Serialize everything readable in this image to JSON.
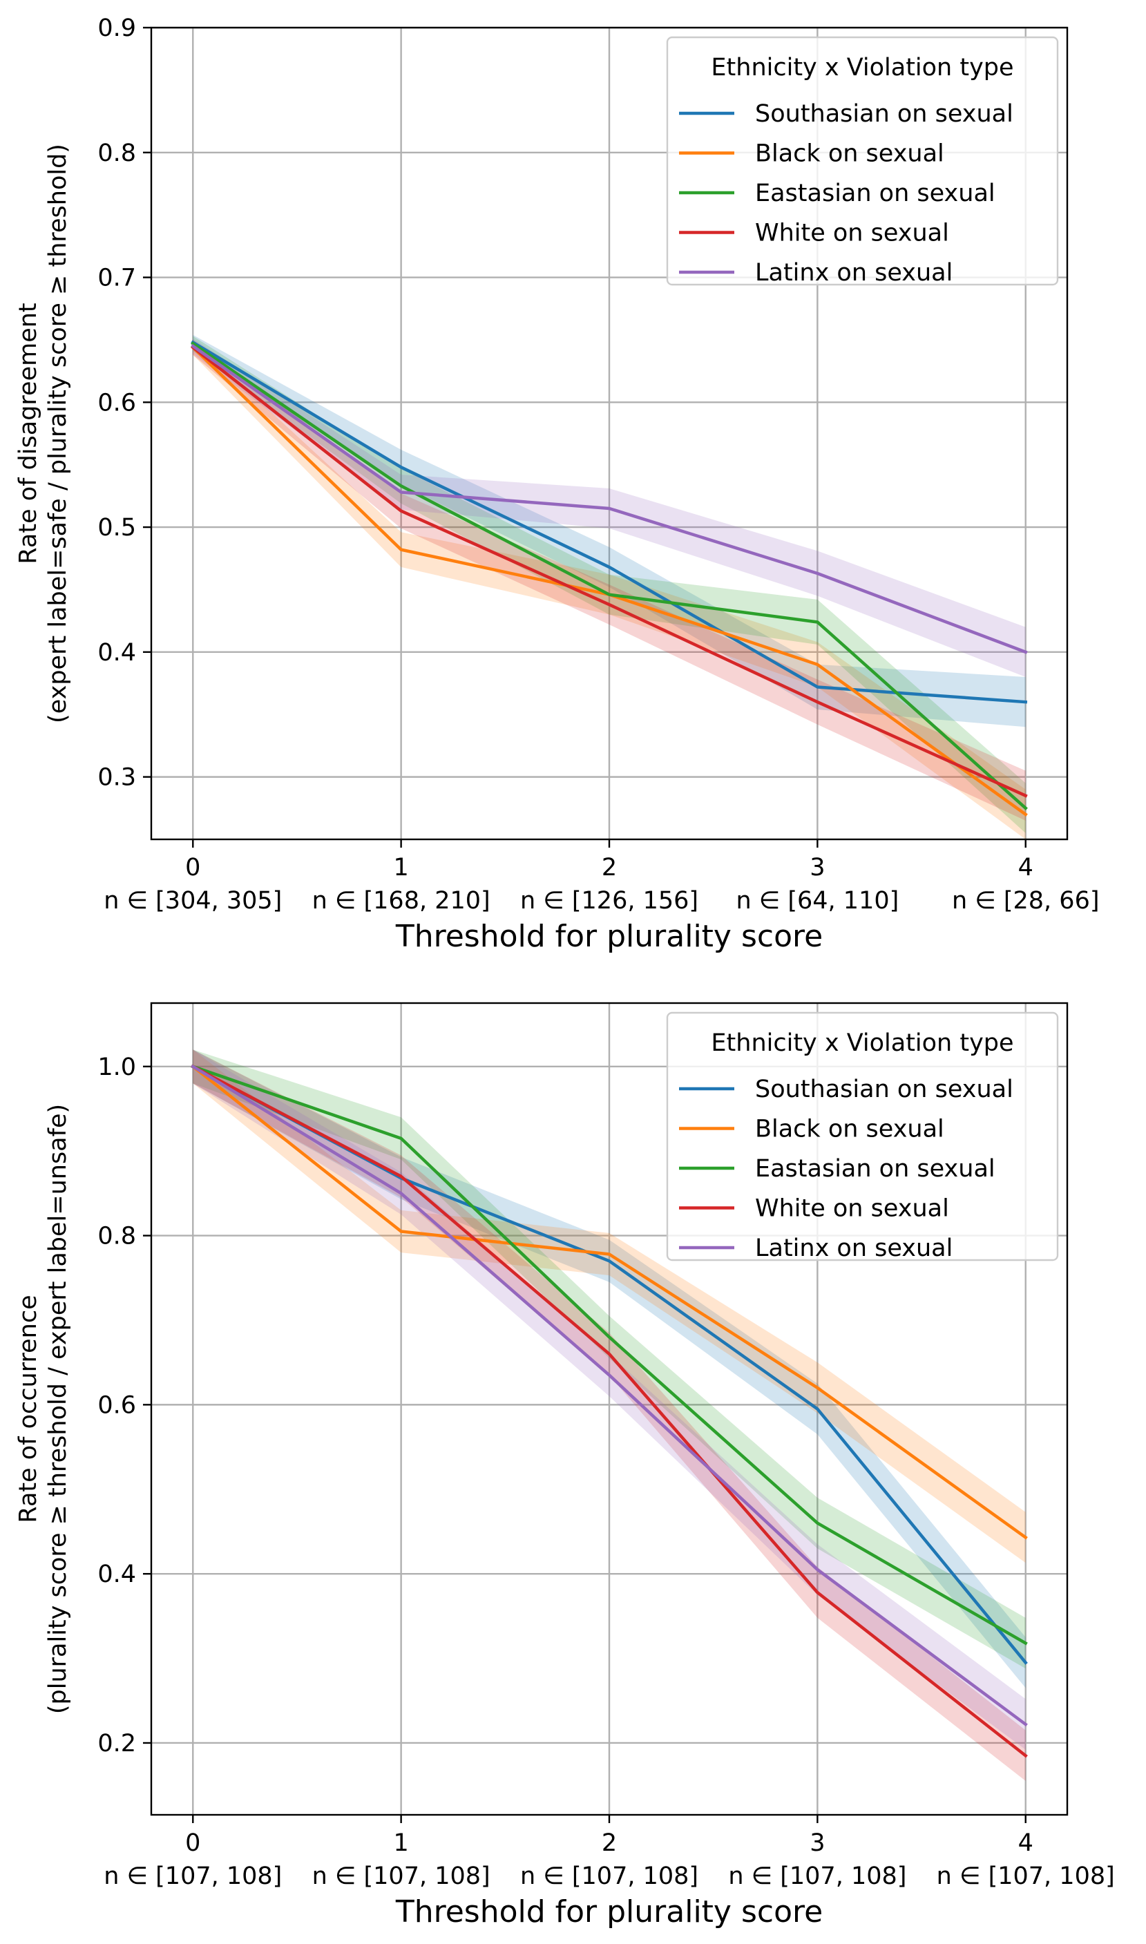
{
  "chart_data": [
    {
      "type": "line",
      "x": [
        0,
        1,
        2,
        3,
        4
      ],
      "xticks": [
        "0",
        "1",
        "2",
        "3",
        "4"
      ],
      "n_labels": [
        "n ∈ [304, 305]",
        "n ∈ [168, 210]",
        "n ∈ [126, 156]",
        "n ∈ [64, 110]",
        "n ∈ [28, 66]"
      ],
      "yticks": [
        "0.3",
        "0.4",
        "0.5",
        "0.6",
        "0.7",
        "0.8",
        "0.9"
      ],
      "ytick_values": [
        0.3,
        0.4,
        0.5,
        0.6,
        0.7,
        0.8,
        0.9
      ],
      "xlabel": "Threshold for plurality score",
      "ylabel_line1": "Rate of disagreement",
      "ylabel_line2": "(expert label=safe / plurality score ≥ threshold)",
      "xlim": [
        -0.2,
        4.2
      ],
      "ylim": [
        0.25,
        0.9
      ],
      "grid": true,
      "legend": {
        "title": "Ethnicity x Violation type",
        "placement": "top-right"
      },
      "series": [
        {
          "name": "Southasian on sexual",
          "color": "#1f77b4",
          "values": [
            0.648,
            0.548,
            0.468,
            0.372,
            0.36
          ],
          "band": [
            0.006,
            0.014,
            0.016,
            0.018,
            0.02
          ]
        },
        {
          "name": "Black on sexual",
          "color": "#ff7f0e",
          "values": [
            0.644,
            0.482,
            0.446,
            0.39,
            0.27
          ],
          "band": [
            0.006,
            0.014,
            0.016,
            0.018,
            0.02
          ]
        },
        {
          "name": "Eastasian on sexual",
          "color": "#2ca02c",
          "values": [
            0.647,
            0.533,
            0.446,
            0.424,
            0.275
          ],
          "band": [
            0.006,
            0.014,
            0.016,
            0.018,
            0.02
          ]
        },
        {
          "name": "White on sexual",
          "color": "#d62728",
          "values": [
            0.644,
            0.513,
            0.438,
            0.36,
            0.285
          ],
          "band": [
            0.006,
            0.014,
            0.016,
            0.018,
            0.02
          ]
        },
        {
          "name": "Latinx on sexual",
          "color": "#9467bd",
          "values": [
            0.645,
            0.528,
            0.515,
            0.463,
            0.4
          ],
          "band": [
            0.006,
            0.014,
            0.016,
            0.018,
            0.02
          ]
        }
      ]
    },
    {
      "type": "line",
      "x": [
        0,
        1,
        2,
        3,
        4
      ],
      "xticks": [
        "0",
        "1",
        "2",
        "3",
        "4"
      ],
      "n_labels": [
        "n ∈ [107, 108]",
        "n ∈ [107, 108]",
        "n ∈ [107, 108]",
        "n ∈ [107, 108]",
        "n ∈ [107, 108]"
      ],
      "yticks": [
        "0.2",
        "0.4",
        "0.6",
        "0.8",
        "1.0"
      ],
      "ytick_values": [
        0.2,
        0.4,
        0.6,
        0.8,
        1.0
      ],
      "xlabel": "Threshold for plurality score",
      "ylabel_line1": "Rate of occurrence",
      "ylabel_line2": "(plurality score ≥ threshold / expert label=unsafe)",
      "xlim": [
        -0.2,
        4.2
      ],
      "ylim": [
        0.115,
        1.075
      ],
      "grid": true,
      "legend": {
        "title": "Ethnicity x Violation type",
        "placement": "top-right"
      },
      "series": [
        {
          "name": "Southasian on sexual",
          "color": "#1f77b4",
          "values": [
            1.0,
            0.868,
            0.77,
            0.595,
            0.295
          ],
          "band": [
            0.02,
            0.025,
            0.025,
            0.03,
            0.03
          ]
        },
        {
          "name": "Black on sexual",
          "color": "#ff7f0e",
          "values": [
            1.0,
            0.805,
            0.778,
            0.62,
            0.443
          ],
          "band": [
            0.02,
            0.025,
            0.025,
            0.03,
            0.03
          ]
        },
        {
          "name": "Eastasian on sexual",
          "color": "#2ca02c",
          "values": [
            1.0,
            0.915,
            0.68,
            0.46,
            0.318
          ],
          "band": [
            0.02,
            0.025,
            0.025,
            0.03,
            0.03
          ]
        },
        {
          "name": "White on sexual",
          "color": "#d62728",
          "values": [
            1.0,
            0.87,
            0.66,
            0.378,
            0.185
          ],
          "band": [
            0.02,
            0.025,
            0.025,
            0.03,
            0.03
          ]
        },
        {
          "name": "Latinx on sexual",
          "color": "#9467bd",
          "values": [
            1.0,
            0.85,
            0.635,
            0.405,
            0.222
          ],
          "band": [
            0.02,
            0.025,
            0.025,
            0.03,
            0.03
          ]
        }
      ]
    }
  ]
}
